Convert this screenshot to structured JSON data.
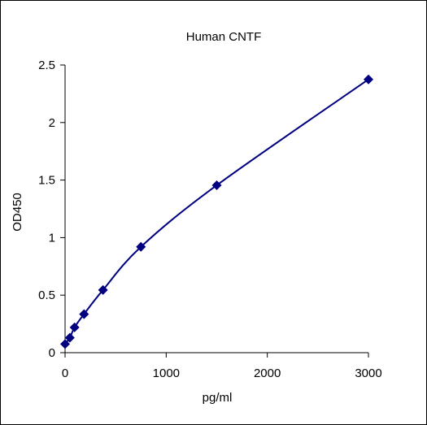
{
  "chart_data": {
    "type": "line",
    "title": "Human CNTF",
    "xlabel": "pg/ml",
    "ylabel": "OD450",
    "xlim": [
      0,
      3000
    ],
    "ylim": [
      0,
      2.5
    ],
    "x_ticks": [
      "0",
      "1000",
      "2000",
      "3000"
    ],
    "y_ticks": [
      "0",
      "0.5",
      "1",
      "1.5",
      "2",
      "2.5"
    ],
    "grid": false,
    "legend": "none",
    "series": [
      {
        "x": [
          0,
          46.9,
          93.75,
          187.5,
          375,
          750,
          1500,
          3000
        ],
        "y": [
          0.075,
          0.13,
          0.22,
          0.335,
          0.545,
          0.92,
          1.455,
          2.375
        ],
        "marker": "diamond",
        "color": "#000080"
      }
    ]
  }
}
